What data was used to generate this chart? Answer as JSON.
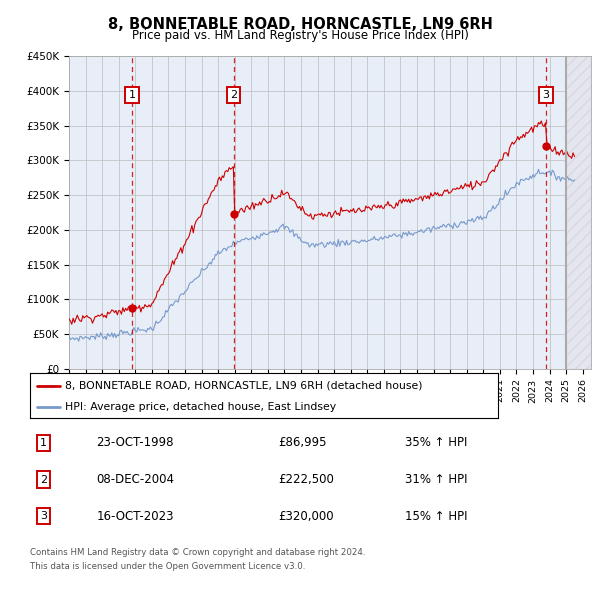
{
  "title": "8, BONNETABLE ROAD, HORNCASTLE, LN9 6RH",
  "subtitle": "Price paid vs. HM Land Registry's House Price Index (HPI)",
  "red_label": "8, BONNETABLE ROAD, HORNCASTLE, LN9 6RH (detached house)",
  "blue_label": "HPI: Average price, detached house, East Lindsey",
  "transactions": [
    {
      "num": 1,
      "date": "23-OCT-1998",
      "price": 86995,
      "pct": "35% ↑ HPI",
      "year": 1998.8
    },
    {
      "num": 2,
      "date": "08-DEC-2004",
      "price": 222500,
      "pct": "31% ↑ HPI",
      "year": 2004.93
    },
    {
      "num": 3,
      "date": "16-OCT-2023",
      "price": 320000,
      "pct": "15% ↑ HPI",
      "year": 2023.79
    }
  ],
  "footer_line1": "Contains HM Land Registry data © Crown copyright and database right 2024.",
  "footer_line2": "This data is licensed under the Open Government Licence v3.0.",
  "ylim": [
    0,
    450000
  ],
  "xlim_start": 1995.0,
  "xlim_end": 2026.5,
  "hatch_start": 2025.0,
  "background_color": "#ffffff",
  "plot_bg_color": "#e8eef8",
  "grid_color": "#bbbbbb",
  "red_color": "#cc0000",
  "blue_color": "#7799cc"
}
